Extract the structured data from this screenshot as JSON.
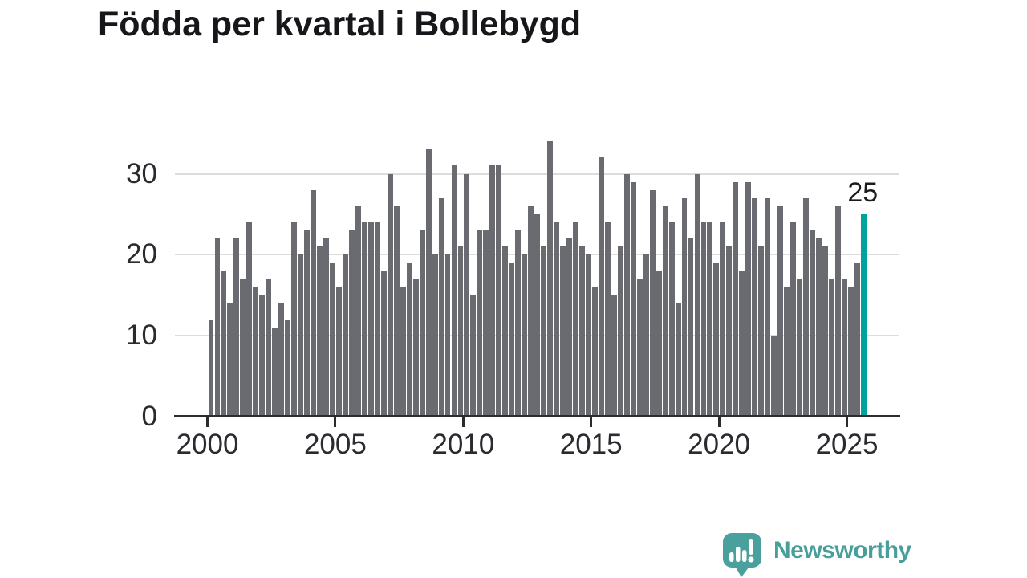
{
  "title": "Födda per kvartal i Bollebygd",
  "chart_data": {
    "type": "bar",
    "title": "Födda per kvartal i Bollebygd",
    "x_start": "2000 Q1",
    "x_end": "2025 Q3",
    "x_unit": "quarter",
    "values": [
      12,
      22,
      18,
      14,
      22,
      17,
      24,
      16,
      15,
      17,
      11,
      14,
      12,
      24,
      20,
      23,
      28,
      21,
      22,
      19,
      16,
      20,
      23,
      26,
      24,
      24,
      24,
      18,
      30,
      26,
      16,
      19,
      17,
      23,
      33,
      20,
      27,
      20,
      31,
      21,
      30,
      15,
      23,
      23,
      31,
      31,
      21,
      19,
      23,
      20,
      26,
      25,
      21,
      34,
      24,
      21,
      22,
      24,
      21,
      20,
      16,
      32,
      24,
      15,
      21,
      30,
      29,
      17,
      20,
      28,
      18,
      26,
      24,
      14,
      27,
      22,
      30,
      24,
      24,
      19,
      24,
      21,
      29,
      18,
      29,
      27,
      21,
      27,
      10,
      26,
      16,
      24,
      17,
      27,
      23,
      22,
      21,
      17,
      26,
      17,
      16,
      19,
      25
    ],
    "xticks": [
      2000,
      2005,
      2010,
      2015,
      2020,
      2025
    ],
    "yticks": [
      0,
      10,
      20,
      30
    ],
    "ylim": [
      0,
      35
    ],
    "grid": "horizontal",
    "legend": "none",
    "highlight": {
      "index": 102,
      "period": "2025 Q3",
      "value": 25,
      "label": "25"
    },
    "colors": {
      "bar": "#6a6a71",
      "highlight": "#00a39c",
      "gridline": "#dcdcdd",
      "axis": "#2b2b30",
      "text": "#2a2a2f"
    }
  },
  "footer": {
    "brand": "Newsworthy",
    "logo_icon": "newsworthy-speech-bubble-barchart-icon",
    "brand_color": "#479e9a"
  }
}
